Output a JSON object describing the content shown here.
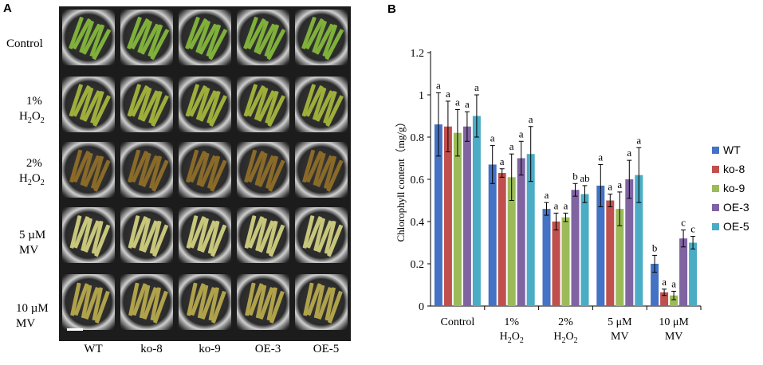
{
  "panel_a": {
    "letter": "A",
    "row_labels": [
      {
        "line1": "Control",
        "line2": ""
      },
      {
        "line1": "1%",
        "line2": "H2O2"
      },
      {
        "line1": "2%",
        "line2": "H2O2"
      },
      {
        "line1": "5 µM",
        "line2": "MV"
      },
      {
        "line1": "10 µM",
        "line2": "MV"
      }
    ],
    "col_labels": [
      "WT",
      "ko-8",
      "ko-9",
      "OE-3",
      "OE-5"
    ],
    "row_tints": [
      "#7fb03a",
      "#9fae3a",
      "#8a6a28",
      "#c7c67a",
      "#b0a24a"
    ]
  },
  "chart_data": {
    "type": "bar",
    "panel_letter": "B",
    "title": "",
    "xlabel": "",
    "ylabel": "Chlorophyll content（mg/g）",
    "ylim": [
      0,
      1.2
    ],
    "yticks": [
      "0",
      "0.2",
      "0.4",
      "0.6",
      "0.8",
      "1",
      "1.2"
    ],
    "categories": [
      {
        "line1": "Control",
        "line2": ""
      },
      {
        "line1": "1%",
        "line2": "H2O2"
      },
      {
        "line1": "2%",
        "line2": "H2O2"
      },
      {
        "line1": "5 μM",
        "line2": "MV"
      },
      {
        "line1": "10 μM",
        "line2": "MV"
      }
    ],
    "series": [
      {
        "name": "WT",
        "color": "#4472c4",
        "values": [
          0.86,
          0.67,
          0.46,
          0.57,
          0.2
        ],
        "errors": [
          0.15,
          0.09,
          0.03,
          0.1,
          0.04
        ],
        "letters": [
          "a",
          "a",
          "a",
          "a",
          "b"
        ]
      },
      {
        "name": "ko-8",
        "color": "#c0504d",
        "values": [
          0.85,
          0.63,
          0.4,
          0.5,
          0.065
        ],
        "errors": [
          0.12,
          0.02,
          0.04,
          0.03,
          0.015
        ],
        "letters": [
          "a",
          "a",
          "a",
          "a",
          "a"
        ]
      },
      {
        "name": "ko-9",
        "color": "#9bbb59",
        "values": [
          0.82,
          0.61,
          0.42,
          0.46,
          0.05
        ],
        "errors": [
          0.11,
          0.11,
          0.02,
          0.08,
          0.02
        ],
        "letters": [
          "a",
          "a",
          "a",
          "a",
          "a"
        ]
      },
      {
        "name": "OE-3",
        "color": "#8064a2",
        "values": [
          0.85,
          0.7,
          0.55,
          0.6,
          0.32
        ],
        "errors": [
          0.07,
          0.08,
          0.03,
          0.09,
          0.04
        ],
        "letters": [
          "a",
          "a",
          "b",
          "a",
          "c"
        ]
      },
      {
        "name": "OE-5",
        "color": "#4bacc6",
        "values": [
          0.9,
          0.72,
          0.53,
          0.62,
          0.3
        ],
        "errors": [
          0.1,
          0.13,
          0.04,
          0.13,
          0.03
        ],
        "letters": [
          "a",
          "a",
          "ab",
          "a",
          "c"
        ]
      }
    ]
  }
}
